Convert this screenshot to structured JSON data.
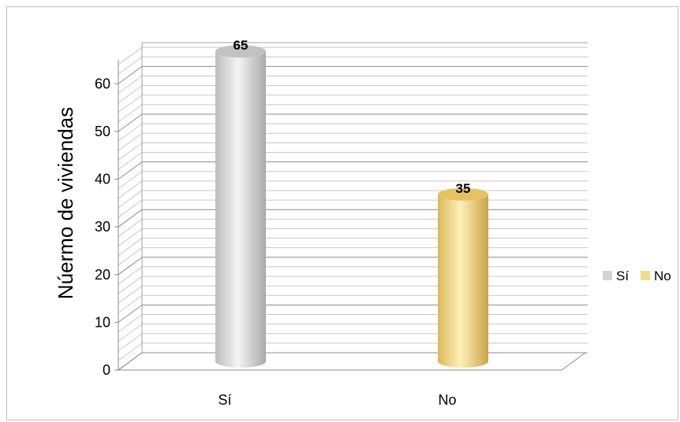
{
  "chart_data": {
    "type": "bar",
    "style": "3d-cylinder",
    "categories": [
      "Sí",
      "No"
    ],
    "values": [
      65,
      35
    ],
    "title": "",
    "xlabel": "",
    "ylabel": "Núermo de viviendas",
    "ylim": [
      0,
      65
    ],
    "yticks": [
      0,
      10,
      20,
      30,
      40,
      50,
      60
    ],
    "grid": true,
    "legend": {
      "position": "right",
      "entries": [
        "Sí",
        "No"
      ]
    },
    "colors": [
      "#d4d4d4",
      "#f2dc8c"
    ]
  }
}
